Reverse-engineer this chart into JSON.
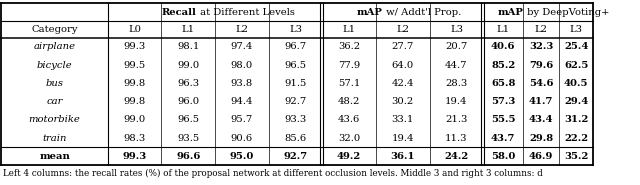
{
  "caption": "Left 4 columns: the recall rates (%) of the proposal network at different occlusion levels. Middle 3 and right 3 columns: d",
  "header_sub": [
    "Category",
    "L0",
    "L1",
    "L2",
    "L3",
    "L1",
    "L2",
    "L3",
    "L1",
    "L2",
    "L3"
  ],
  "rows": [
    [
      "airplane",
      "99.3",
      "98.1",
      "97.4",
      "96.7",
      "36.2",
      "27.7",
      "20.7",
      "40.6",
      "32.3",
      "25.4"
    ],
    [
      "bicycle",
      "99.5",
      "99.0",
      "98.0",
      "96.5",
      "77.9",
      "64.0",
      "44.7",
      "85.2",
      "79.6",
      "62.5"
    ],
    [
      "bus",
      "99.8",
      "96.3",
      "93.8",
      "91.5",
      "57.1",
      "42.4",
      "28.3",
      "65.8",
      "54.6",
      "40.5"
    ],
    [
      "car",
      "99.8",
      "96.0",
      "94.4",
      "92.7",
      "48.2",
      "30.2",
      "19.4",
      "57.3",
      "41.7",
      "29.4"
    ],
    [
      "motorbike",
      "99.0",
      "96.5",
      "95.7",
      "93.3",
      "43.6",
      "33.1",
      "21.3",
      "55.5",
      "43.4",
      "31.2"
    ],
    [
      "train",
      "98.3",
      "93.5",
      "90.6",
      "85.6",
      "32.0",
      "19.4",
      "11.3",
      "43.7",
      "29.8",
      "22.2"
    ],
    [
      "mean",
      "99.3",
      "96.6",
      "95.0",
      "92.7",
      "49.2",
      "36.1",
      "24.2",
      "58.0",
      "46.9",
      "35.2"
    ]
  ],
  "background_color": "#ffffff",
  "line_color": "#000000",
  "text_color": "#000000",
  "font_size": 7.2,
  "caption_font_size": 6.3
}
